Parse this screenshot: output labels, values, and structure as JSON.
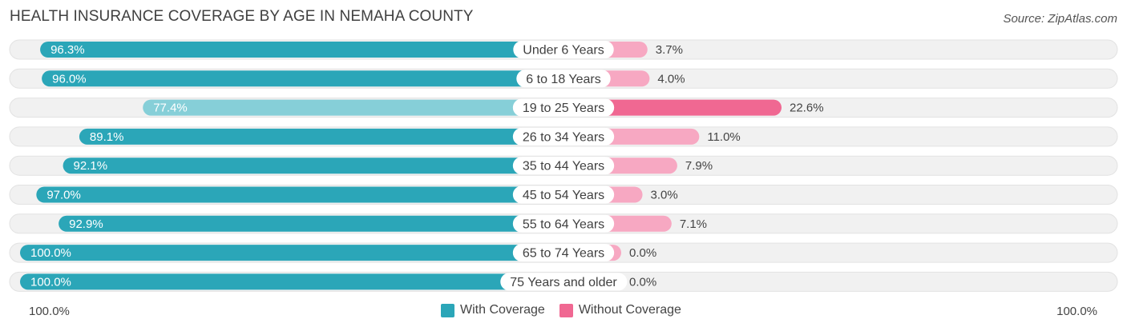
{
  "header": {
    "title": "HEALTH INSURANCE COVERAGE BY AGE IN NEMAHA COUNTY",
    "source": "Source: ZipAtlas.com"
  },
  "colors": {
    "with_strong": "#2ba6b8",
    "with_light": "#86cfd8",
    "without_strong": "#f06892",
    "without_light": "#f7a8c2",
    "track": "#f1f1f1"
  },
  "chart_data": {
    "type": "bar",
    "title": "HEALTH INSURANCE COVERAGE BY AGE IN NEMAHA COUNTY",
    "categories": [
      "Under 6 Years",
      "6 to 18 Years",
      "19 to 25 Years",
      "26 to 34 Years",
      "35 to 44 Years",
      "45 to 54 Years",
      "55 to 64 Years",
      "65 to 74 Years",
      "75 Years and older"
    ],
    "series": [
      {
        "name": "With Coverage",
        "values": [
          96.3,
          96.0,
          77.4,
          89.1,
          92.1,
          97.0,
          92.9,
          100.0,
          100.0
        ],
        "labels": [
          "96.3%",
          "96.0%",
          "77.4%",
          "89.1%",
          "92.1%",
          "97.0%",
          "92.9%",
          "100.0%",
          "100.0%"
        ]
      },
      {
        "name": "Without Coverage",
        "values": [
          3.7,
          4.0,
          22.6,
          11.0,
          7.9,
          3.0,
          7.1,
          0.0,
          0.0
        ],
        "labels": [
          "3.7%",
          "4.0%",
          "22.6%",
          "11.0%",
          "7.9%",
          "3.0%",
          "7.1%",
          "0.0%",
          "0.0%"
        ]
      }
    ],
    "axis": {
      "left_label": "100.0%",
      "right_label": "100.0%"
    },
    "legend": [
      "With Coverage",
      "Without Coverage"
    ]
  }
}
